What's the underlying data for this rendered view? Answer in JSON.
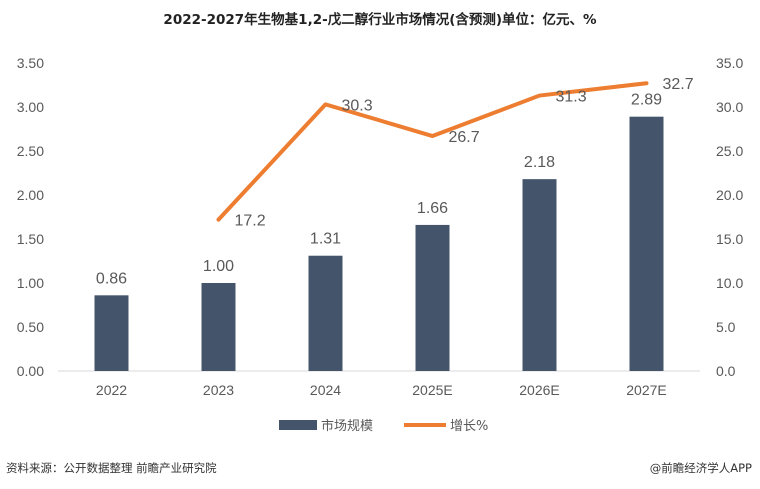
{
  "chart_data": {
    "type": "bar+line",
    "title": "2022-2027年生物基1,2-戊二醇行业市场情况(含预测)单位：亿元、%",
    "categories": [
      "2022",
      "2023",
      "2024",
      "2025E",
      "2026E",
      "2027E"
    ],
    "series": [
      {
        "name": "市场规模",
        "type": "bar",
        "axis": "left",
        "values": [
          0.86,
          1.0,
          1.31,
          1.66,
          2.18,
          2.89
        ],
        "labels": [
          "0.86",
          "1.00",
          "1.31",
          "1.66",
          "2.18",
          "2.89"
        ],
        "color": "#44546A"
      },
      {
        "name": "增长%",
        "type": "line",
        "axis": "right",
        "values": [
          null,
          17.2,
          30.3,
          26.7,
          31.3,
          32.7
        ],
        "labels": [
          "",
          "17.2",
          "30.3",
          "26.7",
          "31.3",
          "32.7"
        ],
        "color": "#ED7D31"
      }
    ],
    "y_left": {
      "min": 0,
      "max": 3.5,
      "ticks": [
        "0.00",
        "0.50",
        "1.00",
        "1.50",
        "2.00",
        "2.50",
        "3.00",
        "3.50"
      ]
    },
    "y_right": {
      "min": 0,
      "max": 35,
      "ticks": [
        "0.0",
        "5.0",
        "10.0",
        "15.0",
        "20.0",
        "25.0",
        "30.0",
        "35.0"
      ]
    },
    "grid": false,
    "legend": "bottom-center"
  },
  "footer": {
    "source": "资料来源：公开数据整理 前瞻产业研究院",
    "brand": "@前瞻经济学人APP"
  }
}
